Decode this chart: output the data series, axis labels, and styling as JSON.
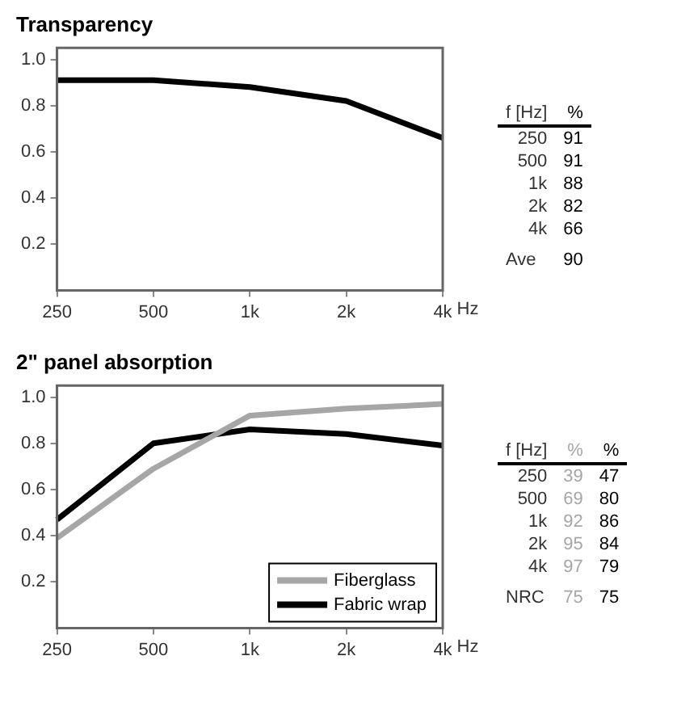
{
  "chart_data": [
    {
      "type": "line",
      "title": "Transparency",
      "xlabel": "Hz",
      "categories": [
        "250",
        "500",
        "1k",
        "2k",
        "4k"
      ],
      "series": [
        {
          "color": "#000000",
          "values": [
            0.91,
            0.91,
            0.88,
            0.82,
            0.66
          ]
        }
      ],
      "ylim": [
        0,
        1.05
      ],
      "yticks": [
        {
          "value": 0.2,
          "label": "0.2"
        },
        {
          "value": 0.4,
          "label": "0.4"
        },
        {
          "value": 0.6,
          "label": "0.6"
        },
        {
          "value": 0.8,
          "label": "0.8"
        },
        {
          "value": 1.0,
          "label": "1.0"
        }
      ],
      "grid": false,
      "legend": false,
      "marker": "none",
      "line_style": "solid"
    },
    {
      "type": "other",
      "categories": [
        "250",
        "500",
        "1k",
        "2k",
        "4k"
      ],
      "series": [
        {
          "color": "#000000",
          "values": [
            91,
            91,
            88,
            82,
            66
          ]
        }
      ],
      "data_labels": true,
      "annotations": [
        "f [Hz]",
        "%",
        "Ave",
        "90"
      ]
    },
    {
      "type": "line",
      "title": "2\" panel absorption",
      "xlabel": "Hz",
      "categories": [
        "250",
        "500",
        "1k",
        "2k",
        "4k"
      ],
      "series": [
        {
          "name": "Fiberglass",
          "color": "#a6a6a6",
          "values": [
            0.39,
            0.69,
            0.92,
            0.95,
            0.97
          ]
        },
        {
          "name": "Fabric wrap",
          "color": "#000000",
          "values": [
            0.47,
            0.8,
            0.86,
            0.84,
            0.79
          ]
        }
      ],
      "ylim": [
        0,
        1.05
      ],
      "yticks": [
        {
          "value": 0.2,
          "label": "0.2"
        },
        {
          "value": 0.4,
          "label": "0.4"
        },
        {
          "value": 0.6,
          "label": "0.6"
        },
        {
          "value": 0.8,
          "label": "0.8"
        },
        {
          "value": 1.0,
          "label": "1.0"
        }
      ],
      "grid": false,
      "legend": "bottom right",
      "marker": "none",
      "line_style": "solid"
    },
    {
      "type": "other",
      "categories": [
        "250",
        "500",
        "1k",
        "2k",
        "4k"
      ],
      "series": [
        {
          "color": "#a6a6a6",
          "values": [
            39,
            69,
            92,
            95,
            97
          ]
        },
        {
          "color": "#000000",
          "values": [
            47,
            80,
            86,
            84,
            79
          ]
        }
      ],
      "data_labels": true,
      "annotations": [
        "f [Hz]",
        "%",
        "%",
        "NRC",
        "75",
        "75"
      ]
    }
  ]
}
